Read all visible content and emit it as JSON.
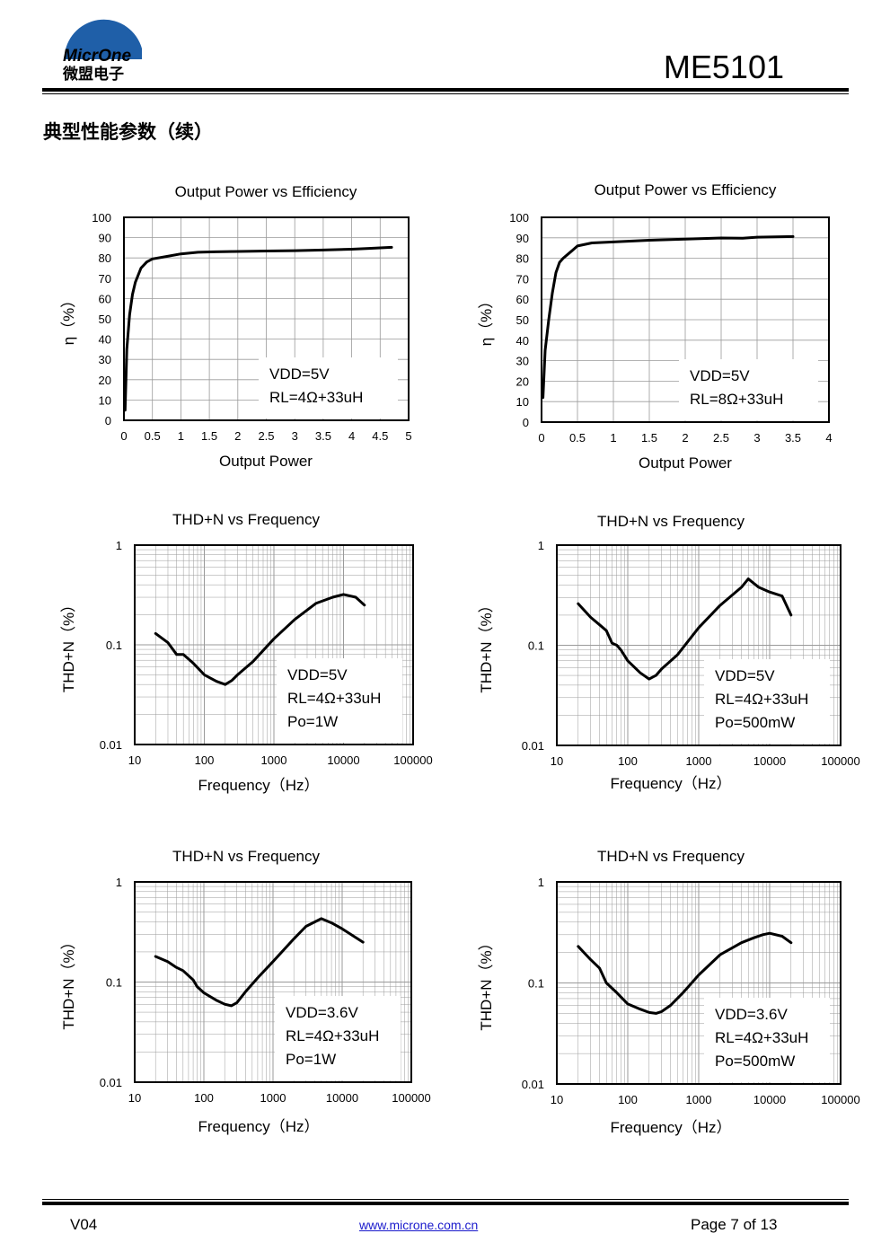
{
  "header": {
    "logo_text": "MicrOne",
    "logo_cn": "微盟电子",
    "doc_title": "ME5101"
  },
  "section_title": "典型性能参数（续）",
  "colors": {
    "curve": "#000000",
    "grid": "#9a9a9a",
    "link": "#1a1acc"
  },
  "chart_data": [
    {
      "type": "line",
      "title": "Output Power vs Efficiency",
      "xlabel": "Output Power",
      "ylabel": "η（%）",
      "xlim": [
        0,
        5
      ],
      "ylim": [
        0,
        100
      ],
      "xticks": [
        "0",
        "0.5",
        "1",
        "1.5",
        "2",
        "2.5",
        "3",
        "3.5",
        "4",
        "4.5",
        "5"
      ],
      "yticks": [
        "0",
        "10",
        "20",
        "30",
        "40",
        "50",
        "60",
        "70",
        "80",
        "90",
        "100"
      ],
      "grid": true,
      "annotation": [
        "VDD=5V",
        "RL=4Ω+33uH"
      ],
      "x": [
        0.02,
        0.05,
        0.1,
        0.15,
        0.2,
        0.3,
        0.4,
        0.5,
        0.7,
        1.0,
        1.3,
        1.6,
        2.0,
        2.5,
        3.0,
        3.5,
        4.0,
        4.3,
        4.7
      ],
      "y": [
        5,
        35,
        52,
        62,
        68,
        75,
        78,
        79.5,
        80.5,
        82,
        82.8,
        83,
        83.2,
        83.4,
        83.6,
        83.9,
        84.3,
        84.7,
        85.2
      ]
    },
    {
      "type": "line",
      "title": "Output Power vs Efficiency",
      "xlabel": "Output Power",
      "ylabel": "η（%）",
      "xlim": [
        0,
        4
      ],
      "ylim": [
        0,
        100
      ],
      "xticks": [
        "0",
        "0.5",
        "1",
        "1.5",
        "2",
        "2.5",
        "3",
        "3.5",
        "4"
      ],
      "yticks": [
        "0",
        "10",
        "20",
        "30",
        "40",
        "50",
        "60",
        "70",
        "80",
        "90",
        "100"
      ],
      "grid": true,
      "annotation": [
        "VDD=5V",
        "RL=8Ω+33uH"
      ],
      "x": [
        0.02,
        0.05,
        0.1,
        0.15,
        0.2,
        0.25,
        0.3,
        0.4,
        0.5,
        0.7,
        1.0,
        1.5,
        2.0,
        2.5,
        2.8,
        3.0,
        3.5
      ],
      "y": [
        12,
        35,
        50,
        63,
        73,
        78,
        80,
        83,
        86,
        87.5,
        88,
        88.8,
        89.4,
        89.9,
        89.8,
        90.3,
        90.6
      ]
    },
    {
      "type": "line",
      "title": "THD+N vs Frequency",
      "xlabel": "Frequency（Hz）",
      "ylabel": "THD+N（%）",
      "xscale": "log",
      "yscale": "log",
      "xlim": [
        10,
        100000
      ],
      "ylim": [
        0.01,
        1
      ],
      "xticks": [
        "10",
        "100",
        "1000",
        "10000",
        "100000"
      ],
      "yticks": [
        "0.01",
        "0.1",
        "1"
      ],
      "grid": true,
      "annotation": [
        "VDD=5V",
        "RL=4Ω+33uH",
        "Po=1W"
      ],
      "x": [
        20,
        30,
        40,
        50,
        70,
        100,
        150,
        200,
        250,
        300,
        500,
        1000,
        2000,
        4000,
        7000,
        10000,
        15000,
        20000
      ],
      "y": [
        0.13,
        0.105,
        0.08,
        0.08,
        0.065,
        0.05,
        0.043,
        0.04,
        0.044,
        0.05,
        0.068,
        0.115,
        0.18,
        0.26,
        0.3,
        0.32,
        0.3,
        0.25
      ]
    },
    {
      "type": "line",
      "title": "THD+N vs Frequency",
      "xlabel": "Frequency（Hz）",
      "ylabel": "THD+N（%）",
      "xscale": "log",
      "yscale": "log",
      "xlim": [
        10,
        100000
      ],
      "ylim": [
        0.01,
        1
      ],
      "xticks": [
        "10",
        "100",
        "1000",
        "10000",
        "100000"
      ],
      "yticks": [
        "0.01",
        "0.1",
        "1"
      ],
      "grid": true,
      "annotation": [
        "VDD=5V",
        "RL=4Ω+33uH",
        "Po=500mW"
      ],
      "x": [
        20,
        30,
        40,
        50,
        60,
        70,
        80,
        100,
        150,
        200,
        250,
        300,
        500,
        1000,
        2000,
        4000,
        5000,
        7000,
        10000,
        15000,
        20000
      ],
      "y": [
        0.26,
        0.19,
        0.16,
        0.14,
        0.105,
        0.1,
        0.09,
        0.07,
        0.053,
        0.046,
        0.05,
        0.058,
        0.08,
        0.15,
        0.25,
        0.38,
        0.46,
        0.38,
        0.34,
        0.31,
        0.2
      ]
    },
    {
      "type": "line",
      "title": "THD+N vs Frequency",
      "xlabel": "Frequency（Hz）",
      "ylabel": "THD+N（%）",
      "xscale": "log",
      "yscale": "log",
      "xlim": [
        10,
        100000
      ],
      "ylim": [
        0.01,
        1
      ],
      "xticks": [
        "10",
        "100",
        "1000",
        "10000",
        "100000"
      ],
      "yticks": [
        "0.01",
        "0.1",
        "1"
      ],
      "grid": true,
      "annotation": [
        "VDD=3.6V",
        "RL=4Ω+33uH",
        "Po=1W"
      ],
      "x": [
        20,
        30,
        40,
        50,
        70,
        80,
        100,
        150,
        200,
        250,
        300,
        400,
        600,
        1000,
        2000,
        3000,
        5000,
        7000,
        10000,
        20000
      ],
      "y": [
        0.18,
        0.16,
        0.14,
        0.13,
        0.105,
        0.09,
        0.078,
        0.066,
        0.06,
        0.058,
        0.062,
        0.08,
        0.11,
        0.16,
        0.27,
        0.36,
        0.43,
        0.39,
        0.34,
        0.25
      ]
    },
    {
      "type": "line",
      "title": "THD+N vs Frequency",
      "xlabel": "Frequency（Hz）",
      "ylabel": "THD+N（%）",
      "xscale": "log",
      "yscale": "log",
      "xlim": [
        10,
        100000
      ],
      "ylim": [
        0.01,
        1
      ],
      "xticks": [
        "10",
        "100",
        "1000",
        "10000",
        "100000"
      ],
      "yticks": [
        "0.01",
        "0.1",
        "1"
      ],
      "grid": true,
      "annotation": [
        "VDD=3.6V",
        "RL=4Ω+33uH",
        "Po=500mW"
      ],
      "x": [
        20,
        30,
        40,
        50,
        70,
        100,
        150,
        200,
        250,
        300,
        400,
        600,
        1000,
        2000,
        4000,
        6000,
        8000,
        10000,
        15000,
        20000
      ],
      "y": [
        0.23,
        0.17,
        0.14,
        0.1,
        0.08,
        0.062,
        0.055,
        0.051,
        0.05,
        0.052,
        0.06,
        0.08,
        0.12,
        0.19,
        0.25,
        0.28,
        0.3,
        0.31,
        0.29,
        0.25
      ]
    }
  ],
  "footer": {
    "version": "V04",
    "url": "www.microne.com.cn",
    "page": "Page 7 of 13"
  }
}
